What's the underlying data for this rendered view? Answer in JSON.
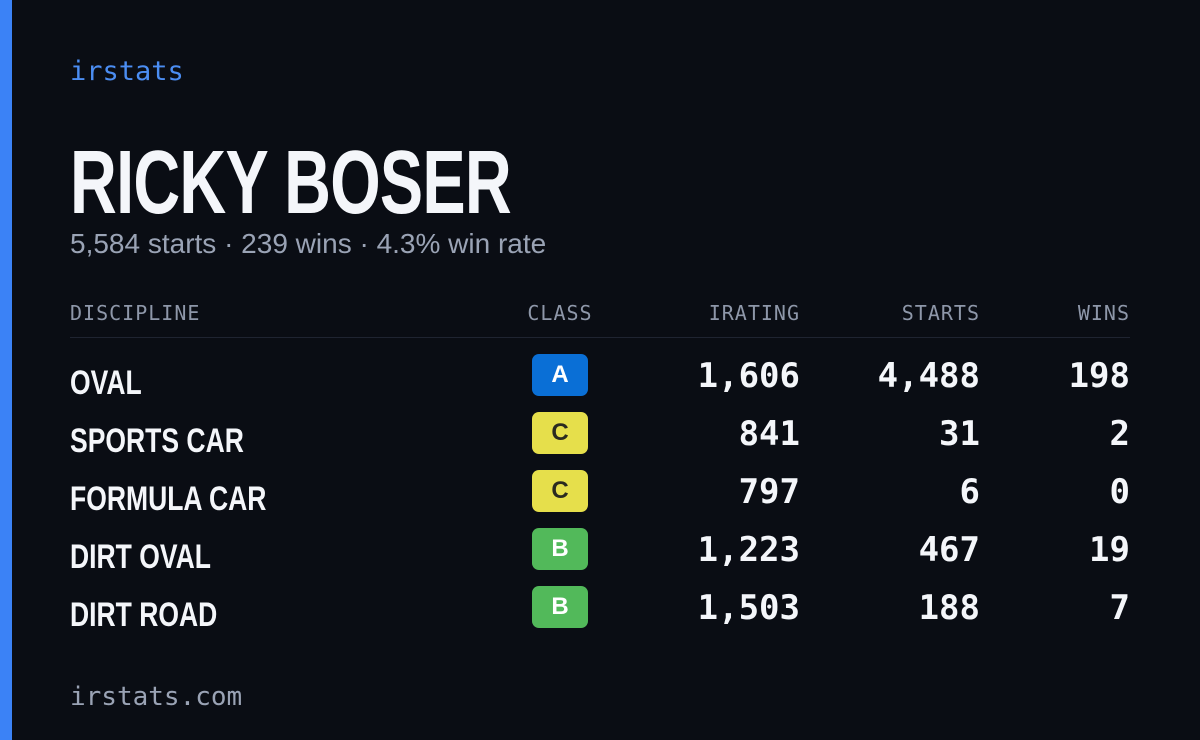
{
  "brand": "irstats",
  "title": "RICKY BOSER",
  "subtitle": "5,584 starts · 239 wins · 4.3% win rate",
  "table": {
    "columns": [
      "DISCIPLINE",
      "CLASS",
      "IRATING",
      "STARTS",
      "WINS"
    ],
    "rows": [
      [
        "OVAL",
        "A",
        "1,606",
        "4,488",
        "198"
      ],
      [
        "SPORTS CAR",
        "C",
        "841",
        "31",
        "2"
      ],
      [
        "FORMULA CAR",
        "C",
        "797",
        "6",
        "0"
      ],
      [
        "DIRT OVAL",
        "B",
        "1,223",
        "467",
        "19"
      ],
      [
        "DIRT ROAD",
        "B",
        "1,503",
        "188",
        "7"
      ]
    ],
    "class_colors": {
      "A": "#0a6fd6",
      "B": "#52b95a",
      "C": "#e6df4b"
    }
  },
  "footer": "irstats.com"
}
